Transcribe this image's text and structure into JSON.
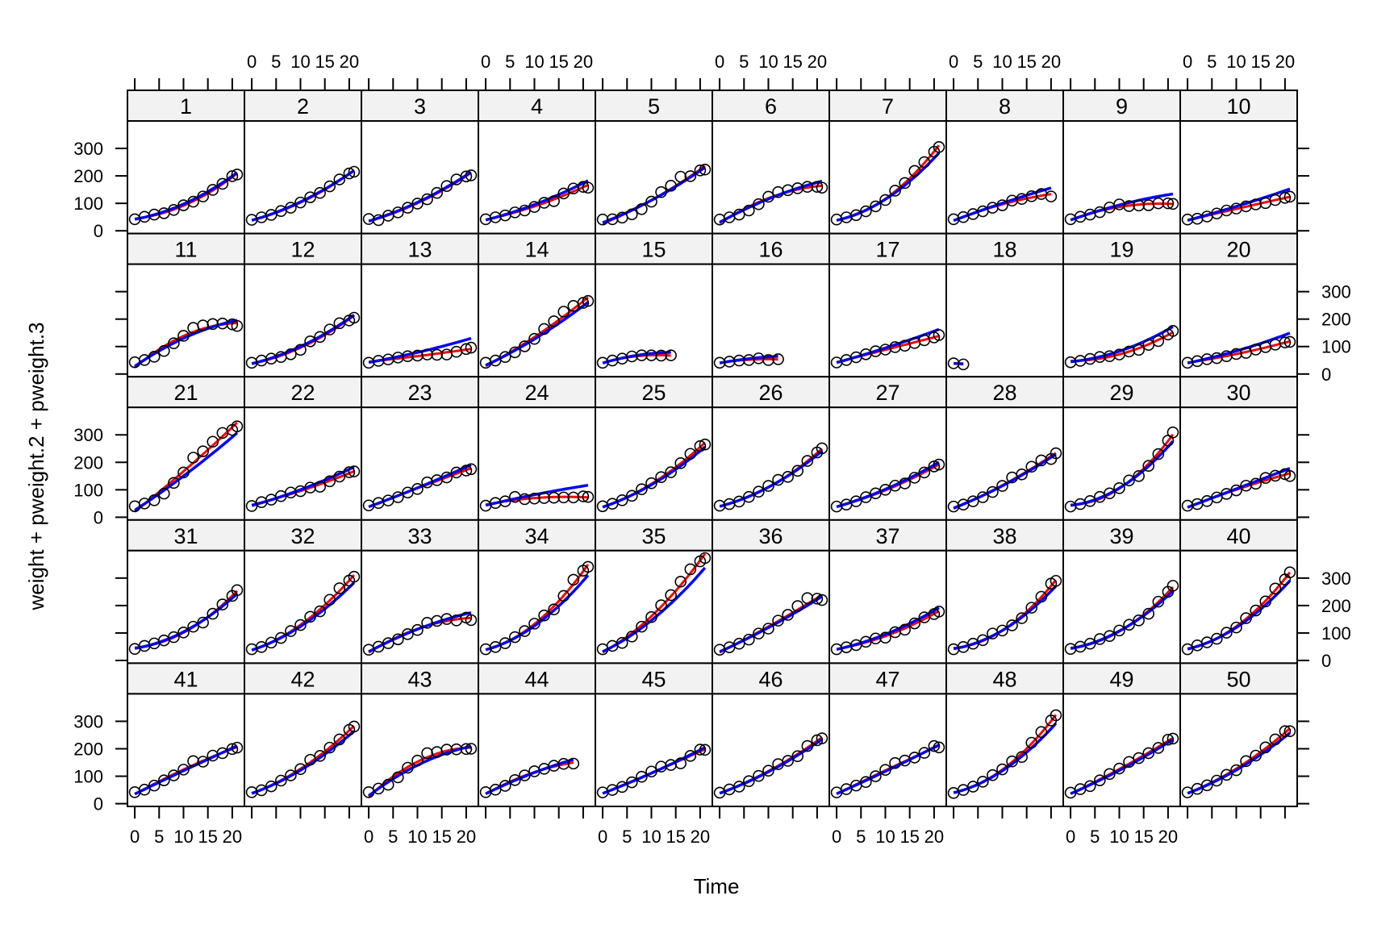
{
  "chart_data": {
    "type": "scatter",
    "layout": "lattice 10 columns x 5 rows",
    "xlabel": "Time",
    "ylabel": "weight + pweight.2 + pweight.3",
    "xlim": [
      -1.5,
      22.5
    ],
    "ylim": [
      -10,
      400
    ],
    "xticks": [
      0,
      5,
      10,
      15,
      20
    ],
    "yticks": [
      0,
      100,
      200,
      300
    ],
    "grid": false,
    "colors": {
      "points": "#000000",
      "pweight.2": "#ff0000",
      "pweight.3": "#0000ff",
      "strip": "#f2f2f2"
    },
    "times": [
      0,
      2,
      4,
      6,
      8,
      10,
      12,
      14,
      16,
      18,
      20,
      21
    ],
    "panels": [
      {
        "label": "1",
        "weight": [
          42,
          51,
          59,
          64,
          76,
          93,
          106,
          125,
          149,
          171,
          199,
          205
        ]
      },
      {
        "label": "2",
        "weight": [
          40,
          49,
          58,
          72,
          84,
          103,
          122,
          138,
          162,
          187,
          209,
          215
        ]
      },
      {
        "label": "3",
        "weight": [
          43,
          39,
          55,
          67,
          84,
          99,
          115,
          138,
          163,
          187,
          198,
          202
        ]
      },
      {
        "label": "4",
        "weight": [
          42,
          49,
          56,
          67,
          74,
          87,
          102,
          108,
          136,
          154,
          160,
          157
        ]
      },
      {
        "label": "5",
        "weight": [
          41,
          42,
          48,
          60,
          79,
          106,
          141,
          164,
          197,
          199,
          220,
          223
        ]
      },
      {
        "label": "6",
        "weight": [
          41,
          49,
          59,
          74,
          97,
          124,
          141,
          148,
          155,
          160,
          160,
          157
        ]
      },
      {
        "label": "7",
        "weight": [
          41,
          49,
          57,
          71,
          89,
          112,
          146,
          174,
          218,
          250,
          288,
          305
        ]
      },
      {
        "label": "8",
        "weight": [
          42,
          50,
          61,
          71,
          84,
          93,
          110,
          116,
          126,
          134,
          125
        ]
      },
      {
        "label": "9",
        "weight": [
          42,
          51,
          59,
          68,
          85,
          96,
          90,
          92,
          93,
          100,
          100,
          98
        ]
      },
      {
        "label": "10",
        "weight": [
          41,
          44,
          52,
          63,
          74,
          81,
          89,
          96,
          101,
          112,
          120,
          124
        ]
      },
      {
        "label": "11",
        "weight": [
          43,
          51,
          63,
          84,
          112,
          139,
          168,
          177,
          182,
          184,
          181,
          175
        ]
      },
      {
        "label": "12",
        "weight": [
          41,
          49,
          56,
          62,
          72,
          88,
          119,
          135,
          162,
          185,
          195,
          205
        ]
      },
      {
        "label": "13",
        "weight": [
          41,
          48,
          53,
          60,
          65,
          67,
          71,
          70,
          71,
          81,
          91,
          96
        ]
      },
      {
        "label": "14",
        "weight": [
          41,
          49,
          62,
          79,
          101,
          128,
          164,
          192,
          227,
          248,
          259,
          266
        ]
      },
      {
        "label": "15",
        "weight": [
          41,
          49,
          56,
          64,
          68,
          68,
          67,
          68
        ]
      },
      {
        "label": "16",
        "weight": [
          41,
          45,
          49,
          51,
          57,
          51,
          54
        ]
      },
      {
        "label": "17",
        "weight": [
          42,
          51,
          61,
          72,
          83,
          89,
          98,
          103,
          113,
          123,
          133,
          142
        ]
      },
      {
        "label": "18",
        "weight": [
          39,
          35
        ]
      },
      {
        "label": "19",
        "weight": [
          43,
          48,
          55,
          62,
          65,
          71,
          82,
          88,
          106,
          120,
          144,
          157
        ]
      },
      {
        "label": "20",
        "weight": [
          41,
          47,
          54,
          58,
          65,
          73,
          77,
          89,
          98,
          107,
          115,
          117
        ]
      },
      {
        "label": "21",
        "weight": [
          40,
          50,
          62,
          86,
          125,
          163,
          217,
          240,
          275,
          307,
          318,
          331
        ]
      },
      {
        "label": "22",
        "weight": [
          41,
          55,
          64,
          77,
          90,
          95,
          108,
          111,
          131,
          148,
          164,
          167
        ]
      },
      {
        "label": "23",
        "weight": [
          43,
          52,
          61,
          73,
          90,
          103,
          127,
          135,
          145,
          163,
          170,
          175
        ]
      },
      {
        "label": "24",
        "weight": [
          42,
          52,
          58,
          74,
          66,
          68,
          70,
          71,
          72,
          72,
          76,
          74
        ]
      },
      {
        "label": "25",
        "weight": [
          40,
          49,
          62,
          78,
          102,
          124,
          146,
          164,
          197,
          231,
          259,
          265
        ]
      },
      {
        "label": "26",
        "weight": [
          42,
          48,
          57,
          74,
          93,
          114,
          136,
          147,
          169,
          205,
          236,
          251
        ]
      },
      {
        "label": "27",
        "weight": [
          39,
          46,
          58,
          73,
          87,
          100,
          115,
          123,
          144,
          163,
          185,
          192
        ]
      },
      {
        "label": "28",
        "weight": [
          39,
          46,
          58,
          73,
          92,
          114,
          145,
          156,
          184,
          207,
          212,
          233
        ]
      },
      {
        "label": "29",
        "weight": [
          39,
          48,
          59,
          74,
          87,
          106,
          134,
          150,
          187,
          230,
          279,
          309
        ]
      },
      {
        "label": "30",
        "weight": [
          42,
          48,
          59,
          72,
          85,
          98,
          115,
          122,
          143,
          151,
          157,
          150
        ]
      },
      {
        "label": "31",
        "weight": [
          42,
          53,
          62,
          73,
          85,
          102,
          123,
          138,
          170,
          204,
          235,
          256
        ]
      },
      {
        "label": "32",
        "weight": [
          41,
          49,
          65,
          82,
          107,
          129,
          159,
          179,
          221,
          263,
          291,
          305
        ]
      },
      {
        "label": "33",
        "weight": [
          39,
          50,
          63,
          77,
          96,
          111,
          137,
          144,
          151,
          146,
          156,
          147
        ]
      },
      {
        "label": "34",
        "weight": [
          41,
          49,
          63,
          85,
          107,
          134,
          164,
          186,
          235,
          294,
          327,
          341
        ]
      },
      {
        "label": "35",
        "weight": [
          41,
          53,
          64,
          87,
          123,
          158,
          201,
          238,
          287,
          332,
          361,
          373
        ]
      },
      {
        "label": "36",
        "weight": [
          39,
          48,
          61,
          76,
          98,
          116,
          145,
          166,
          198,
          227,
          225,
          220
        ]
      },
      {
        "label": "37",
        "weight": [
          41,
          48,
          56,
          68,
          80,
          83,
          103,
          112,
          135,
          157,
          169,
          178
        ]
      },
      {
        "label": "38",
        "weight": [
          41,
          49,
          61,
          74,
          98,
          109,
          128,
          154,
          192,
          232,
          280,
          290
        ]
      },
      {
        "label": "39",
        "weight": [
          42,
          50,
          61,
          78,
          89,
          109,
          130,
          146,
          170,
          214,
          250,
          272
        ]
      },
      {
        "label": "40",
        "weight": [
          41,
          55,
          66,
          79,
          101,
          120,
          154,
          182,
          215,
          262,
          295,
          321
        ]
      },
      {
        "label": "41",
        "weight": [
          42,
          51,
          66,
          85,
          103,
          124,
          155,
          153,
          175,
          184,
          199,
          204
        ]
      },
      {
        "label": "42",
        "weight": [
          42,
          49,
          63,
          84,
          103,
          126,
          160,
          174,
          204,
          234,
          269,
          281
        ]
      },
      {
        "label": "43",
        "weight": [
          42,
          55,
          69,
          96,
          131,
          157,
          184,
          188,
          197,
          198,
          199,
          200
        ]
      },
      {
        "label": "44",
        "weight": [
          42,
          51,
          65,
          86,
          103,
          118,
          127,
          138,
          145,
          146
        ]
      },
      {
        "label": "45",
        "weight": [
          41,
          50,
          61,
          78,
          98,
          117,
          135,
          141,
          147,
          174,
          197,
          196
        ]
      },
      {
        "label": "46",
        "weight": [
          40,
          52,
          62,
          82,
          101,
          120,
          144,
          156,
          173,
          210,
          231,
          238
        ]
      },
      {
        "label": "47",
        "weight": [
          41,
          53,
          66,
          79,
          100,
          123,
          148,
          157,
          168,
          185,
          210,
          205
        ]
      },
      {
        "label": "48",
        "weight": [
          39,
          50,
          62,
          80,
          104,
          125,
          154,
          170,
          222,
          261,
          303,
          322
        ]
      },
      {
        "label": "49",
        "weight": [
          40,
          53,
          64,
          85,
          108,
          128,
          152,
          166,
          184,
          203,
          233,
          237
        ]
      },
      {
        "label": "50",
        "weight": [
          41,
          54,
          67,
          84,
          105,
          122,
          155,
          175,
          205,
          234,
          264,
          264
        ]
      }
    ]
  }
}
